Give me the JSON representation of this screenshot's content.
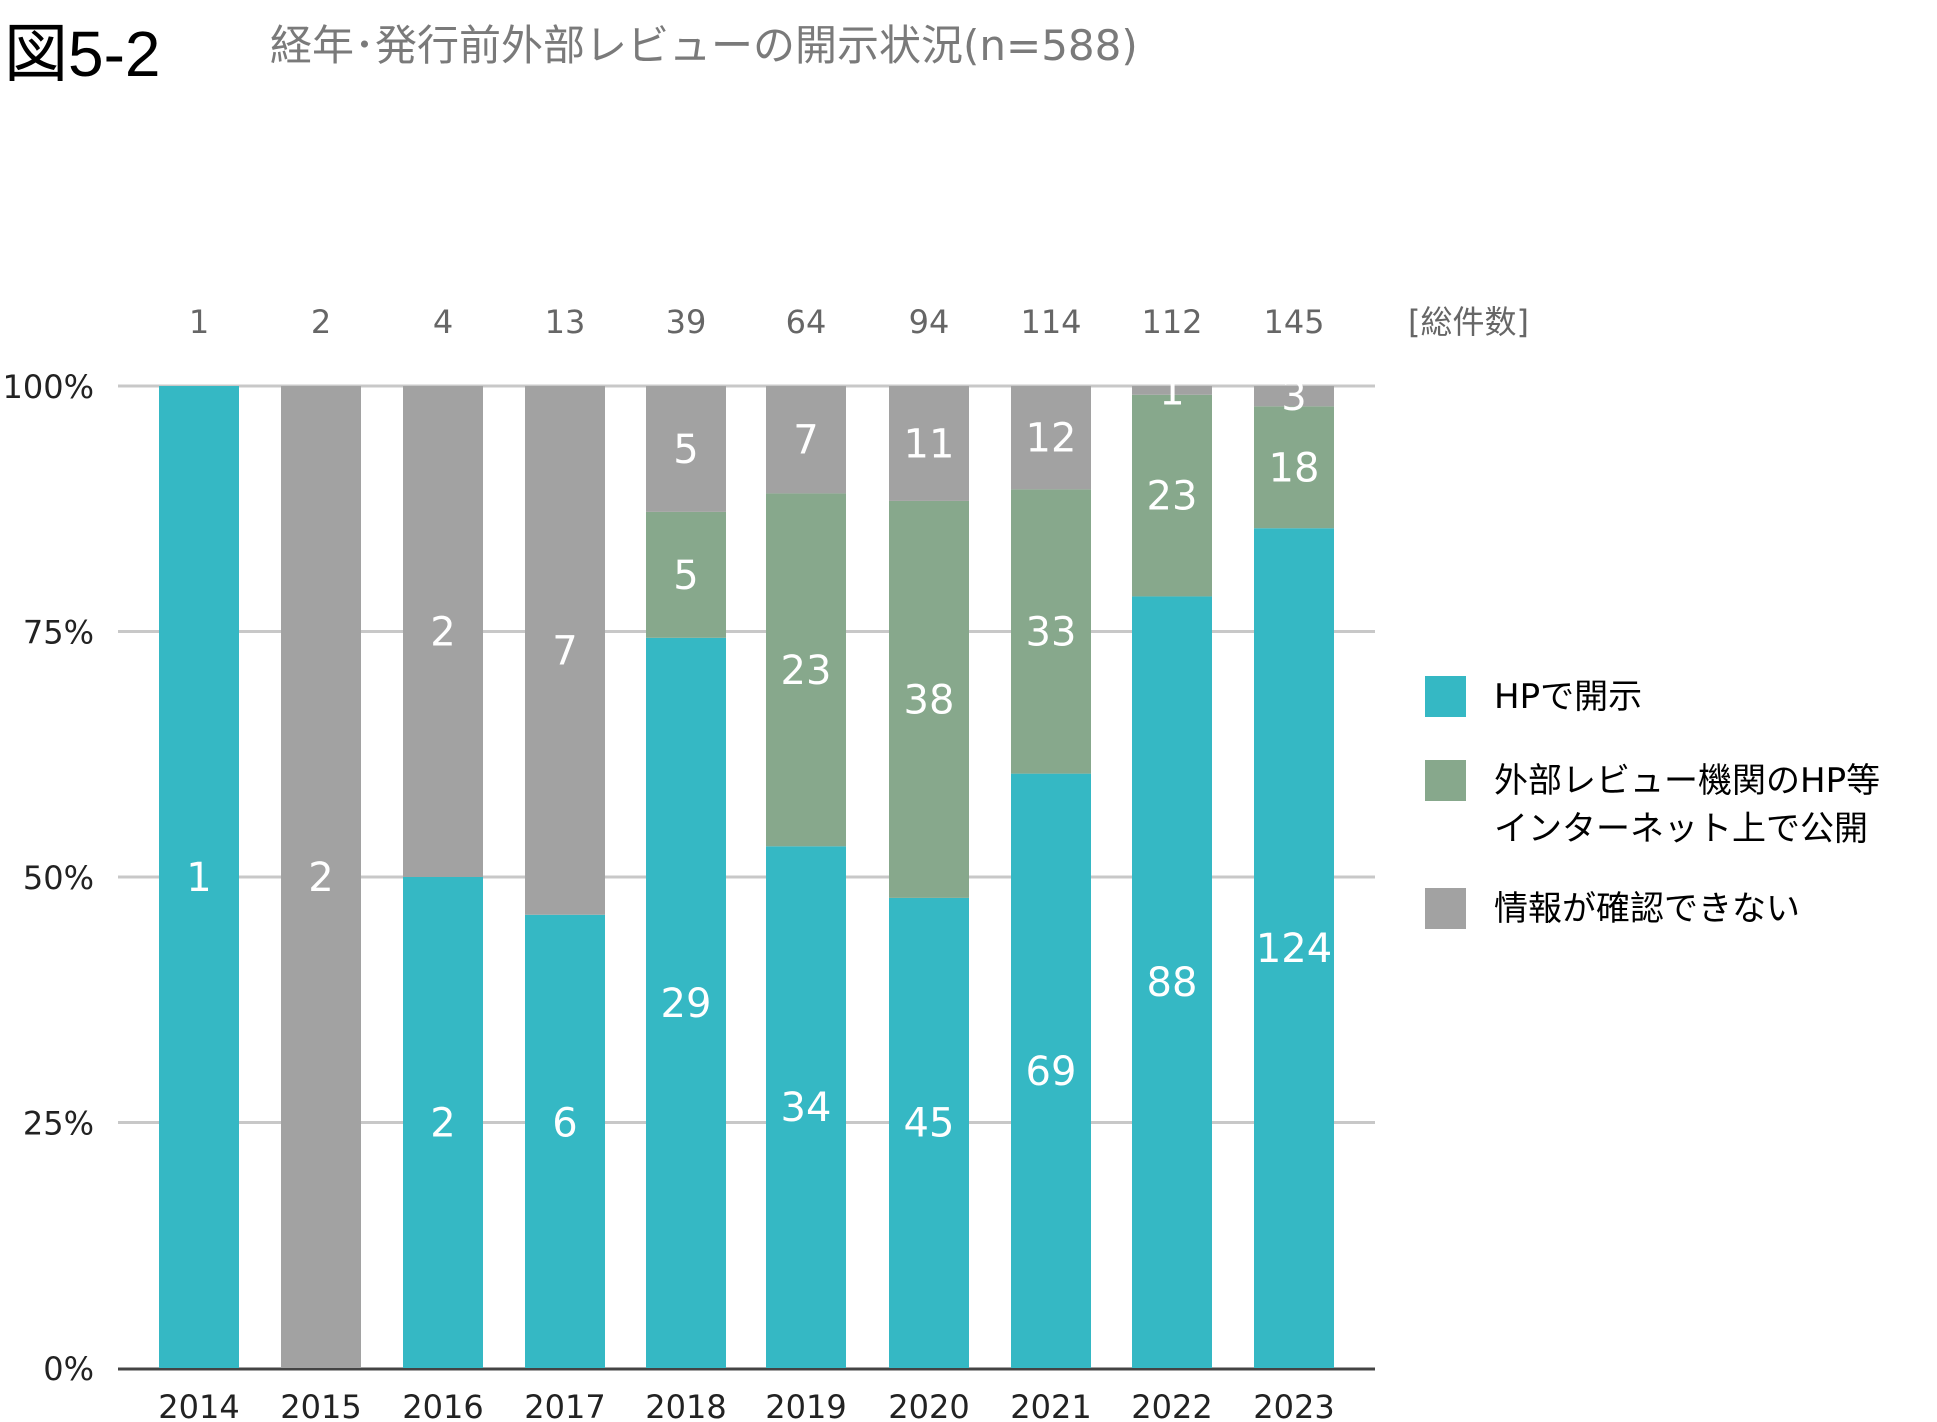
{
  "figure": {
    "label": "図5-2",
    "title": "経年･発行前外部レビューの開示状況(n=588)"
  },
  "colors": {
    "hp": "#35B8C4",
    "external": "#87A88C",
    "unknown": "#A2A2A2",
    "grid": "#C8C8C8",
    "axis": "#444444",
    "tick_text": "#222222",
    "total_text": "#666666",
    "title_text": "#7A7A7A",
    "label_text": "#FFFFFF"
  },
  "chart_data": {
    "type": "bar",
    "stacked": true,
    "normalized": true,
    "categories": [
      "2014",
      "2015",
      "2016",
      "2017",
      "2018",
      "2019",
      "2020",
      "2021",
      "2022",
      "2023"
    ],
    "totals": [
      "1",
      "2",
      "4",
      "13",
      "39",
      "64",
      "94",
      "114",
      "112",
      "145"
    ],
    "totals_label": "[総件数]",
    "series": [
      {
        "name": "HPで開示",
        "color_key": "hp",
        "values": [
          1,
          0,
          2,
          6,
          29,
          34,
          45,
          69,
          88,
          124
        ]
      },
      {
        "name": "外部レビュー機関のHP等\nインターネット上で公開",
        "color_key": "external",
        "values": [
          0,
          0,
          0,
          0,
          5,
          23,
          38,
          33,
          23,
          18
        ]
      },
      {
        "name": "情報が確認できない",
        "color_key": "unknown",
        "values": [
          0,
          2,
          2,
          7,
          5,
          7,
          11,
          12,
          1,
          3
        ]
      }
    ],
    "y_ticks": [
      "0%",
      "25%",
      "50%",
      "75%",
      "100%"
    ],
    "ylim": [
      0,
      100
    ],
    "grid": true,
    "legend_position": "right"
  }
}
